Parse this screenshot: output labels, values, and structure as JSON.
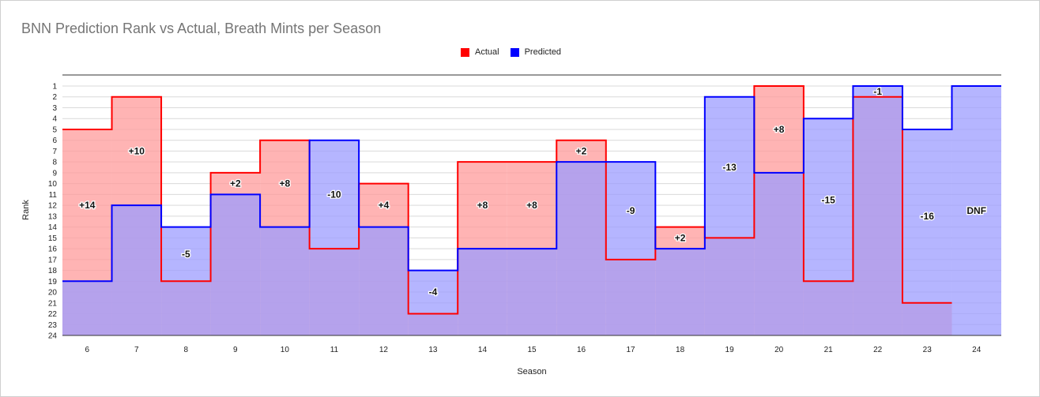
{
  "chart_data": {
    "type": "area",
    "title": "BNN Prediction Rank vs Actual, Breath Mints per Season",
    "xlabel": "Season",
    "ylabel": "Rank",
    "ylim": [
      1,
      24
    ],
    "y_reversed": true,
    "step": true,
    "grid": true,
    "legend_position": "top",
    "categories": [
      "6",
      "7",
      "8",
      "9",
      "10",
      "11",
      "12",
      "13",
      "14",
      "15",
      "16",
      "17",
      "18",
      "19",
      "20",
      "21",
      "22",
      "23",
      "24"
    ],
    "series": [
      {
        "name": "Actual",
        "color": "#ff0000",
        "fill": "#ff9b9b",
        "values": [
          5,
          2,
          19,
          9,
          6,
          16,
          10,
          22,
          8,
          8,
          6,
          17,
          14,
          15,
          1,
          19,
          2,
          21,
          null
        ]
      },
      {
        "name": "Predicted",
        "color": "#0000ff",
        "fill": "#9c9cff",
        "values": [
          19,
          12,
          14,
          11,
          14,
          6,
          14,
          18,
          16,
          16,
          8,
          8,
          16,
          2,
          9,
          4,
          1,
          5,
          1
        ]
      }
    ],
    "annotations": [
      "+14",
      "+10",
      "-5",
      "+2",
      "+8",
      "-10",
      "+4",
      "-4",
      "+8",
      "+8",
      "+2",
      "-9",
      "+2",
      "-13",
      "+8",
      "-15",
      "-1",
      "-16",
      "DNF"
    ],
    "yticks": [
      1,
      2,
      3,
      4,
      5,
      6,
      7,
      8,
      9,
      10,
      11,
      12,
      13,
      14,
      15,
      16,
      17,
      18,
      19,
      20,
      21,
      22,
      23,
      24
    ]
  }
}
